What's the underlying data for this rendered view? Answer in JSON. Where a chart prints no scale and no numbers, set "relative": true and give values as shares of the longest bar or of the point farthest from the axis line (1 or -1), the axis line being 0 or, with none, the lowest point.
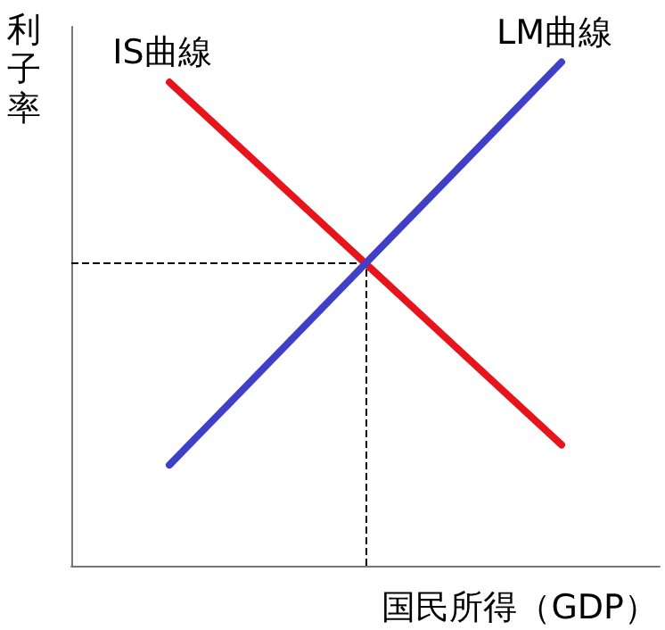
{
  "chart_data": {
    "type": "line",
    "relative": true,
    "xlabel": "国民所得（GDP）",
    "ylabel": "利子率",
    "categories": [
      null,
      null,
      null
    ],
    "series": [
      {
        "name": "IS曲線",
        "color": "#e8141b",
        "values": [
          0.96,
          0.6,
          0.24
        ]
      },
      {
        "name": "LM曲線",
        "color": "#3f3fc8",
        "values": [
          0.2,
          0.6,
          1
        ]
      }
    ],
    "ref_lines": [
      {
        "axis": "y",
        "value": 0.6,
        "line_style": "dashed",
        "color": "#000000"
      }
    ],
    "grid": false,
    "legend": false,
    "marker": "none",
    "line_style": "solid"
  }
}
